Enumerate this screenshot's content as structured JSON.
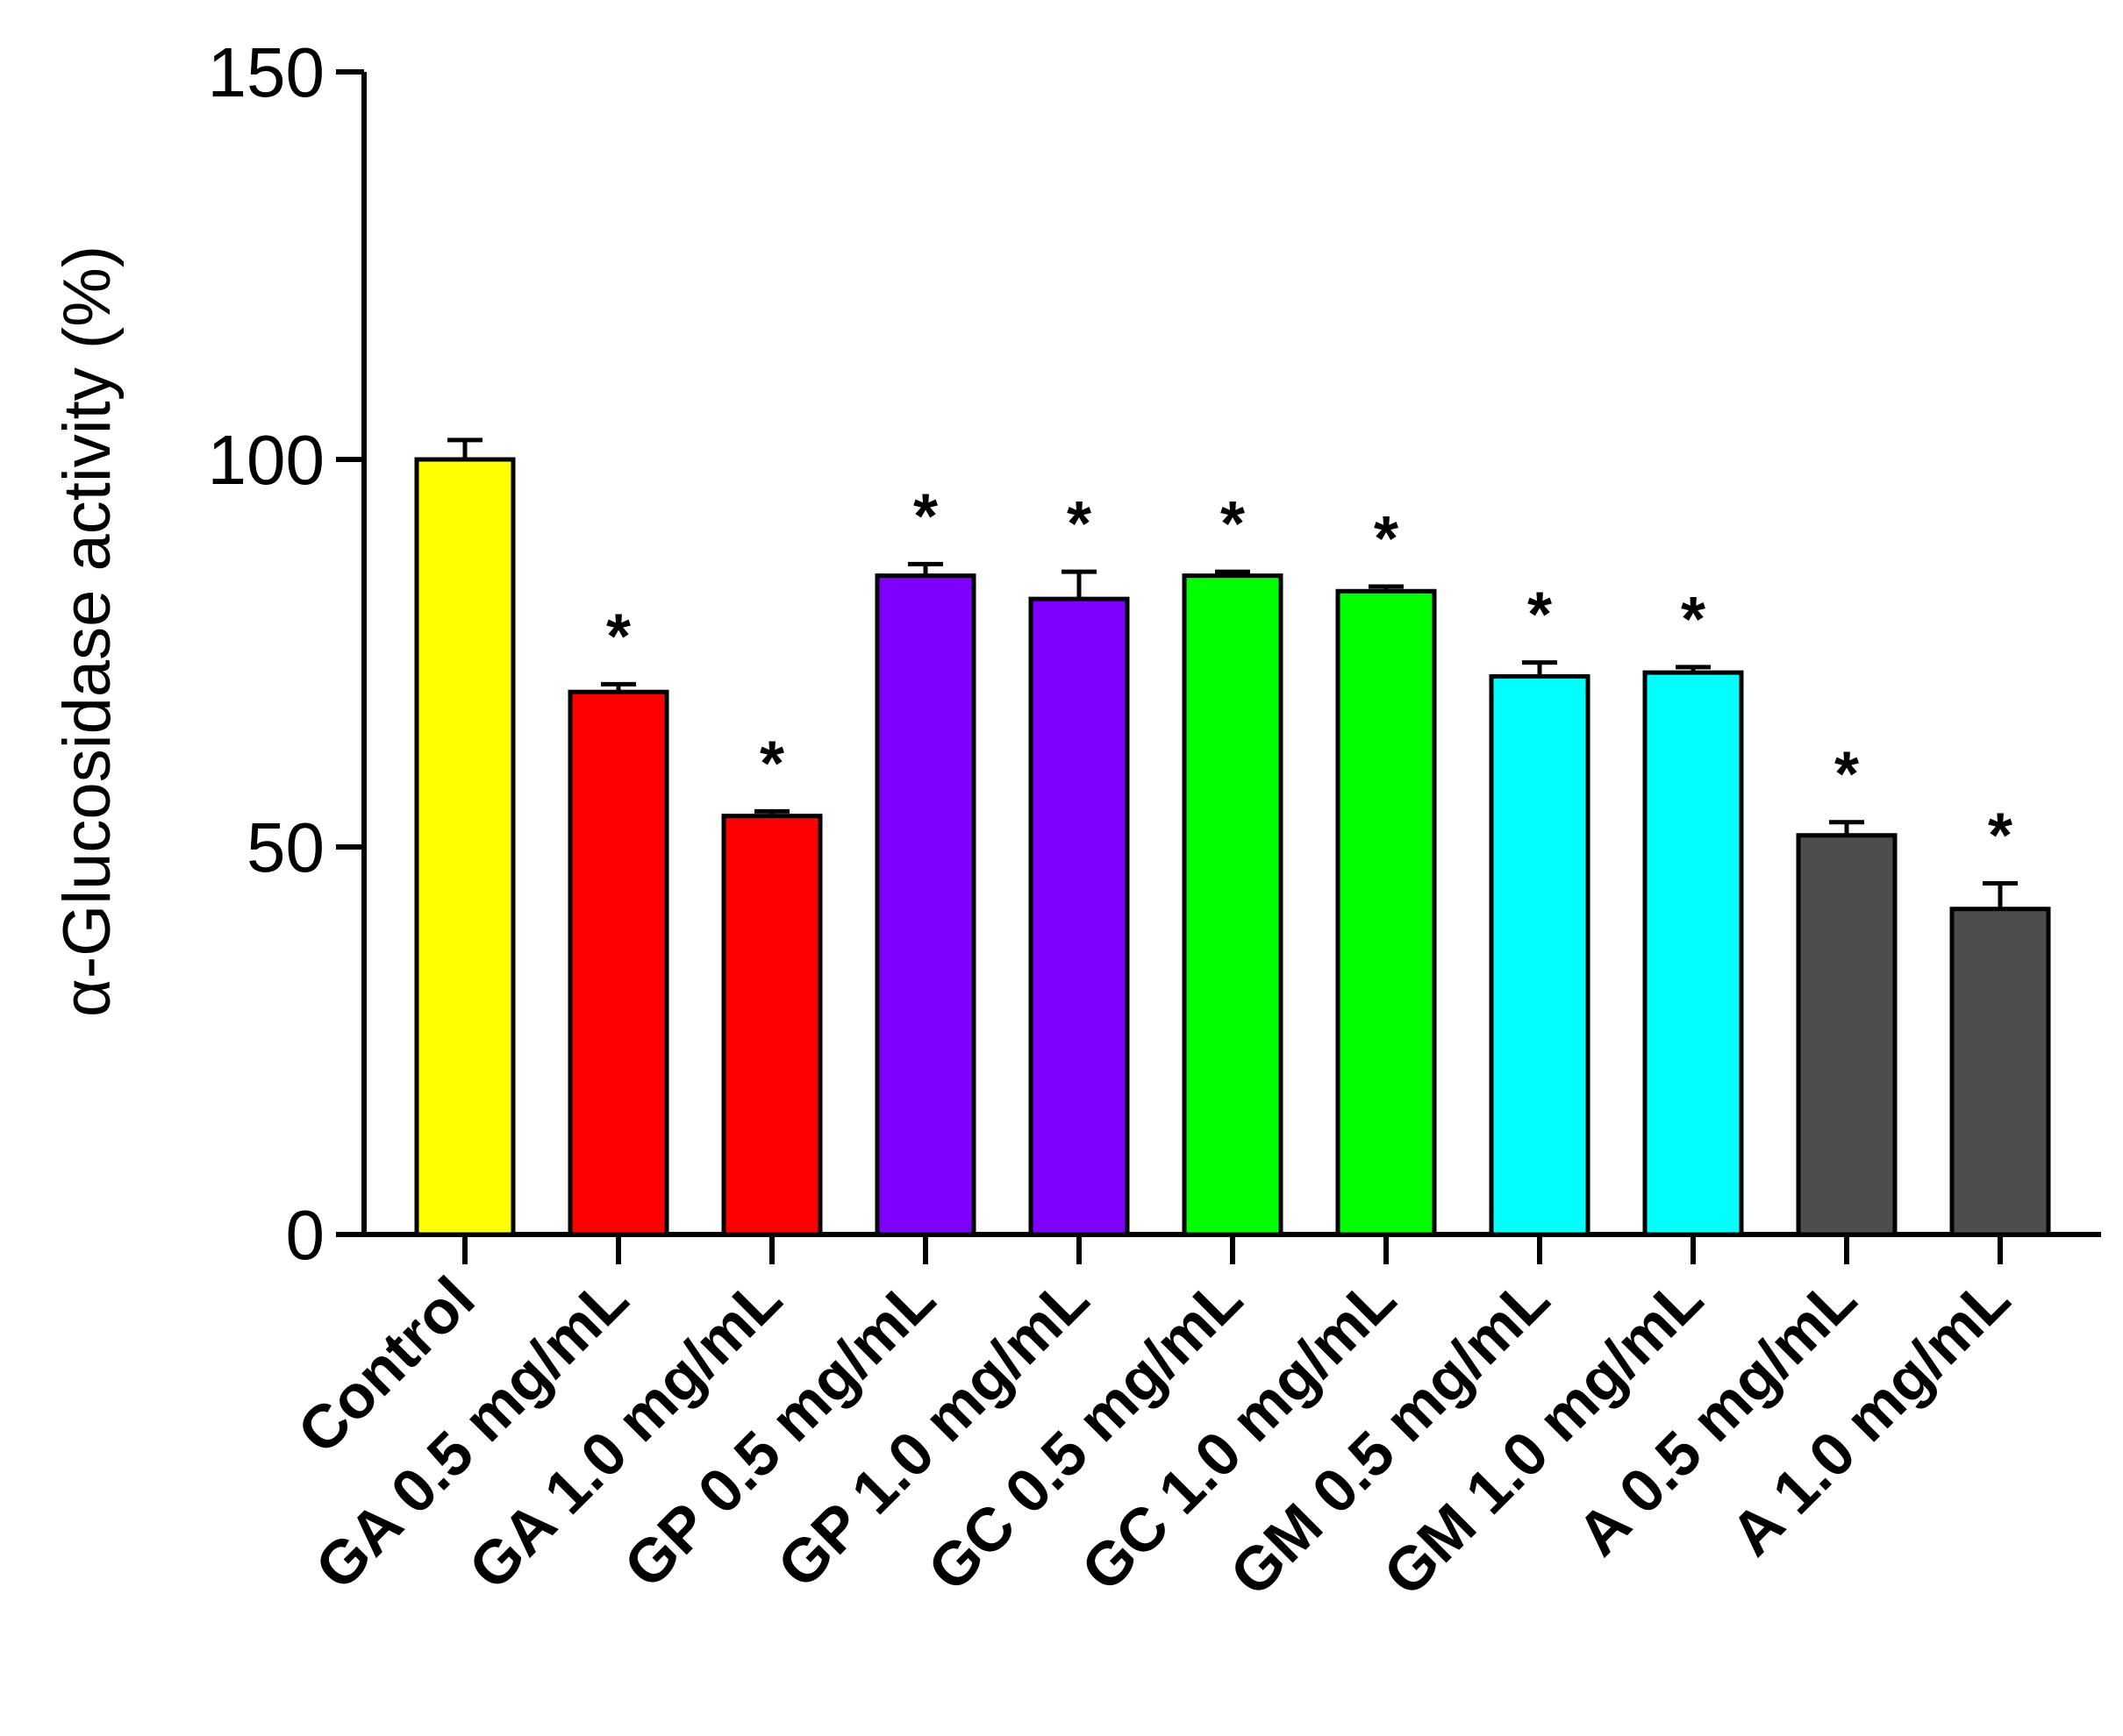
{
  "chart_data": {
    "type": "bar",
    "title": "",
    "xlabel": "",
    "ylabel": "α-Glucosidase activity (%)",
    "ylim": [
      0,
      150
    ],
    "yticks": [
      0,
      50,
      100,
      150
    ],
    "grid": false,
    "categories": [
      "Control",
      "GA 0.5 mg/mL",
      "GA 1.0 mg/mL",
      "GP 0.5 mg/mL",
      "GP 1.0 mg/mL",
      "GC 0.5 mg/mL",
      "GC 1.0 mg/mL",
      "GM 0.5 mg/mL",
      "GM 1.0 mg/mL",
      "A 0.5 mg/mL",
      "A 1.0 mg/mL"
    ],
    "values": [
      100,
      70,
      54,
      85,
      82,
      85,
      83,
      72,
      72.5,
      51.5,
      42
    ],
    "errors": [
      2.5,
      1.0,
      0.6,
      1.5,
      3.5,
      0.5,
      0.6,
      1.8,
      0.7,
      1.7,
      3.3
    ],
    "colors": [
      "#ffff00",
      "#ff0000",
      "#ff0000",
      "#8000ff",
      "#8000ff",
      "#00ff00",
      "#00ff00",
      "#00ffff",
      "#00ffff",
      "#4d4d4d",
      "#4d4d4d"
    ],
    "significance": [
      "",
      "*",
      "*",
      "*",
      "*",
      "*",
      "*",
      "*",
      "*",
      "*",
      "*"
    ]
  }
}
